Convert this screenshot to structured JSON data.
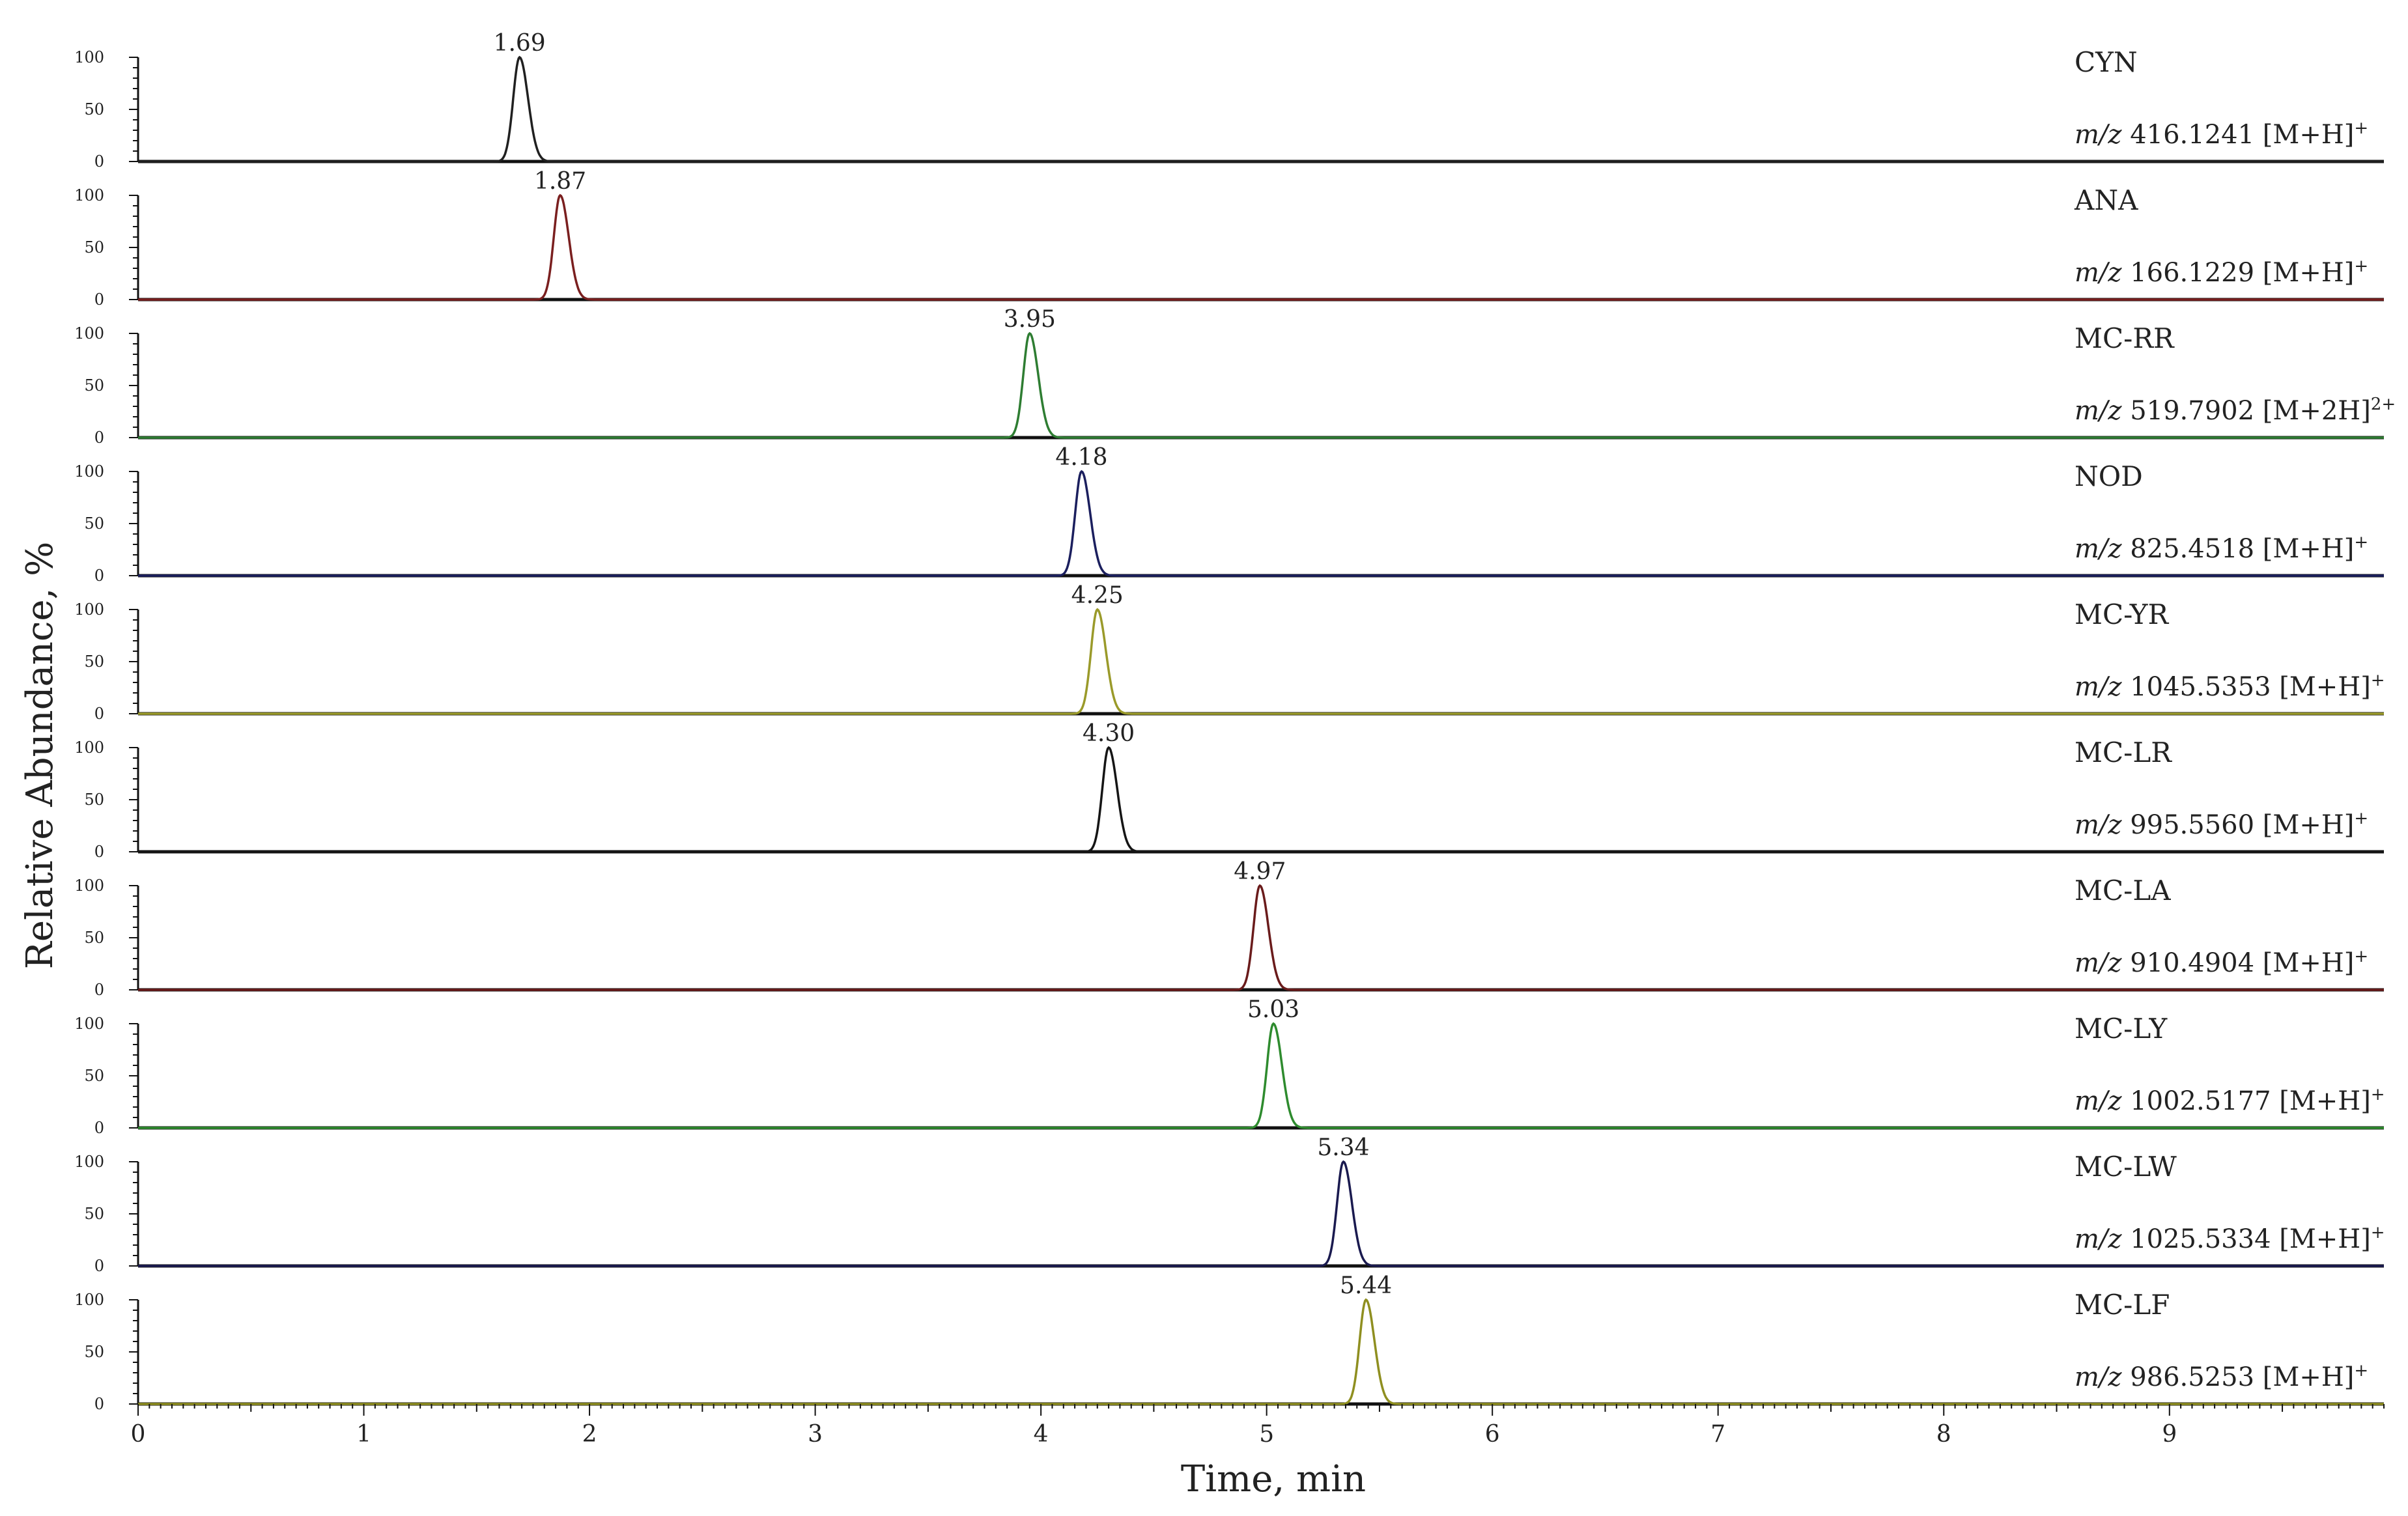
{
  "chart_data": {
    "type": "line",
    "xlabel": "Time, min",
    "ylabel": "Relative Abundance, %",
    "xlim": [
      0,
      9.95
    ],
    "x_ticks": [
      "0",
      "1",
      "2",
      "3",
      "4",
      "5",
      "6",
      "7",
      "8",
      "9"
    ],
    "y_ticks": [
      "0",
      "50",
      "100"
    ],
    "ylim": [
      0,
      100
    ],
    "grid": false,
    "legend": "none",
    "series": [
      {
        "name": "CYN",
        "mz_label": "416.1241 [M+H]",
        "charge": "+",
        "apex_rt": 1.69,
        "apex_label": "1.69",
        "peak_height": 100,
        "color": "#202020"
      },
      {
        "name": "ANA",
        "mz_label": "166.1229 [M+H]",
        "charge": "+",
        "apex_rt": 1.87,
        "apex_label": "1.87",
        "peak_height": 100,
        "color": "#7a1f1f"
      },
      {
        "name": "MC-RR",
        "mz_label": "519.7902 [M+2H]",
        "charge": "2+",
        "apex_rt": 3.95,
        "apex_label": "3.95",
        "peak_height": 100,
        "color": "#2e7d32"
      },
      {
        "name": "NOD",
        "mz_label": "825.4518 [M+H]",
        "charge": "+",
        "apex_rt": 4.18,
        "apex_label": "4.18",
        "peak_height": 100,
        "color": "#1b1f5e"
      },
      {
        "name": "MC-YR",
        "mz_label": "1045.5353 [M+H]",
        "charge": "+",
        "apex_rt": 4.25,
        "apex_label": "4.25",
        "peak_height": 100,
        "color": "#9a9a2a"
      },
      {
        "name": "MC-LR",
        "mz_label": "995.5560 [M+H]",
        "charge": "+",
        "apex_rt": 4.3,
        "apex_label": "4.30",
        "peak_height": 100,
        "color": "#151515"
      },
      {
        "name": "MC-LA",
        "mz_label": "910.4904 [M+H]",
        "charge": "+",
        "apex_rt": 4.97,
        "apex_label": "4.97",
        "peak_height": 100,
        "color": "#6a1b1b"
      },
      {
        "name": "MC-LY",
        "mz_label": "1002.5177 [M+H]",
        "charge": "+",
        "apex_rt": 5.03,
        "apex_label": "5.03",
        "peak_height": 100,
        "color": "#2e8b2e"
      },
      {
        "name": "MC-LW",
        "mz_label": "1025.5334 [M+H]",
        "charge": "+",
        "apex_rt": 5.34,
        "apex_label": "5.34",
        "peak_height": 100,
        "color": "#1a1a4f"
      },
      {
        "name": "MC-LF",
        "mz_label": "986.5253 [M+H]",
        "charge": "+",
        "apex_rt": 5.44,
        "apex_label": "5.44",
        "peak_height": 100,
        "color": "#8f8f20"
      }
    ],
    "mz_prefix": "m/z"
  }
}
